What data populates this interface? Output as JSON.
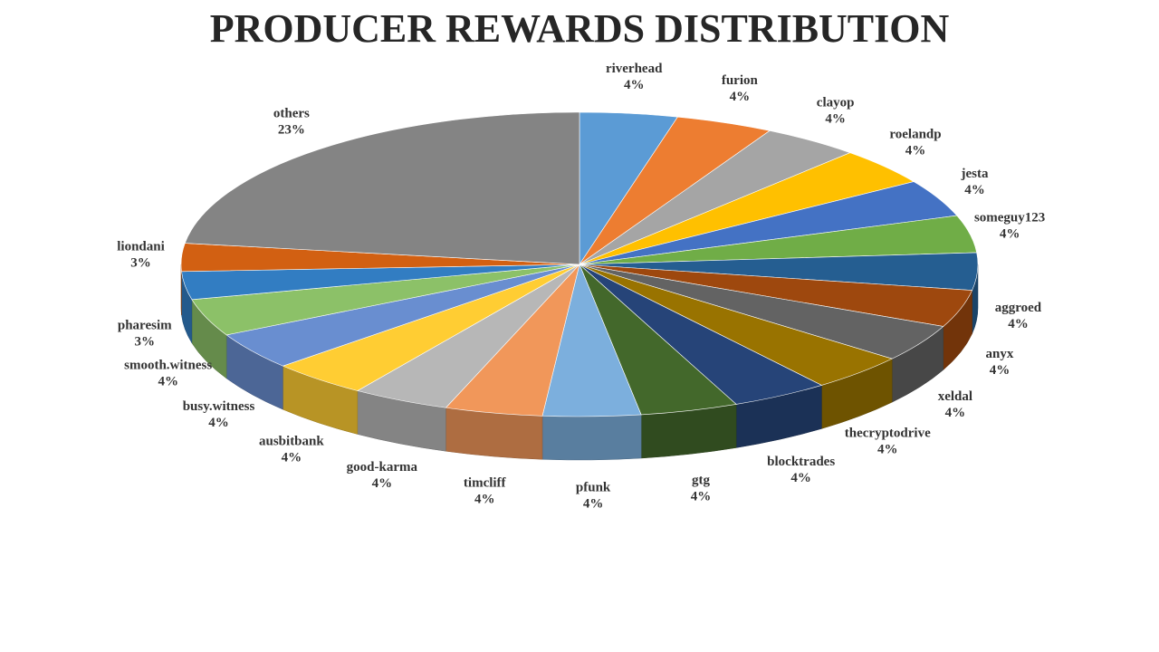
{
  "chart_data": {
    "type": "pie",
    "title": "PRODUCER REWARDS DISTRIBUTION",
    "categories": [
      "riverhead",
      "furion",
      "clayop",
      "roelandp",
      "jesta",
      "someguy123",
      "aggroed",
      "anyx",
      "xeldal",
      "thecryptodrive",
      "blocktrades",
      "gtg",
      "pfunk",
      "timcliff",
      "good-karma",
      "ausbitbank",
      "busy.witness",
      "smooth.witness",
      "pharesim",
      "liondani",
      "others"
    ],
    "values": [
      4,
      4,
      4,
      4,
      4,
      4,
      4,
      4,
      4,
      4,
      4,
      4,
      4,
      4,
      4,
      4,
      4,
      4,
      3,
      3,
      23
    ],
    "value_labels": [
      "4%",
      "4%",
      "4%",
      "4%",
      "4%",
      "4%",
      "4%",
      "4%",
      "4%",
      "4%",
      "4%",
      "4%",
      "4%",
      "4%",
      "4%",
      "4%",
      "4%",
      "4%",
      "3%",
      "3%",
      "23%"
    ],
    "colors": [
      "#5b9bd5",
      "#ed7d31",
      "#a5a5a5",
      "#ffc000",
      "#4472c4",
      "#70ad47",
      "#255e91",
      "#9e480e",
      "#636363",
      "#997300",
      "#264478",
      "#43682b",
      "#7cafdd",
      "#f1975a",
      "#b7b7b7",
      "#ffcd33",
      "#698ed0",
      "#8cc168",
      "#327dc2",
      "#d26012",
      "#848484"
    ]
  }
}
